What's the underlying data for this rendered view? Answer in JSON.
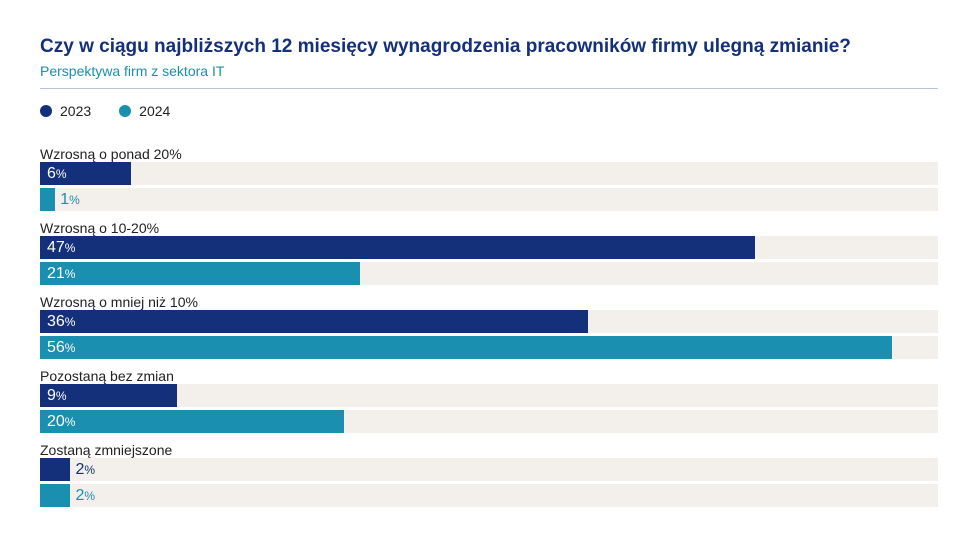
{
  "chart_data": {
    "type": "bar",
    "orientation": "horizontal",
    "title": "Czy w ciągu najbliższych 12 miesięcy wynagrodzenia pracowników firmy ulegną zmianie?",
    "subtitle": "Perspektywa firm z sektora IT",
    "legend_position": "top-left",
    "grid": false,
    "xlim": [
      0,
      59
    ],
    "value_suffix": "%",
    "categories": [
      "Wzrosną o ponad 20%",
      "Wzrosną o 10-20%",
      "Wzrosną o mniej niż 10%",
      "Pozostaną bez zmian",
      "Zostaną zmniejszone"
    ],
    "series": [
      {
        "name": "2023",
        "color": "#14307a",
        "values": [
          6,
          47,
          36,
          9,
          2
        ]
      },
      {
        "name": "2024",
        "color": "#1a8fb0",
        "values": [
          1,
          21,
          56,
          20,
          2
        ]
      }
    ],
    "track_color": "#f3efeb"
  }
}
